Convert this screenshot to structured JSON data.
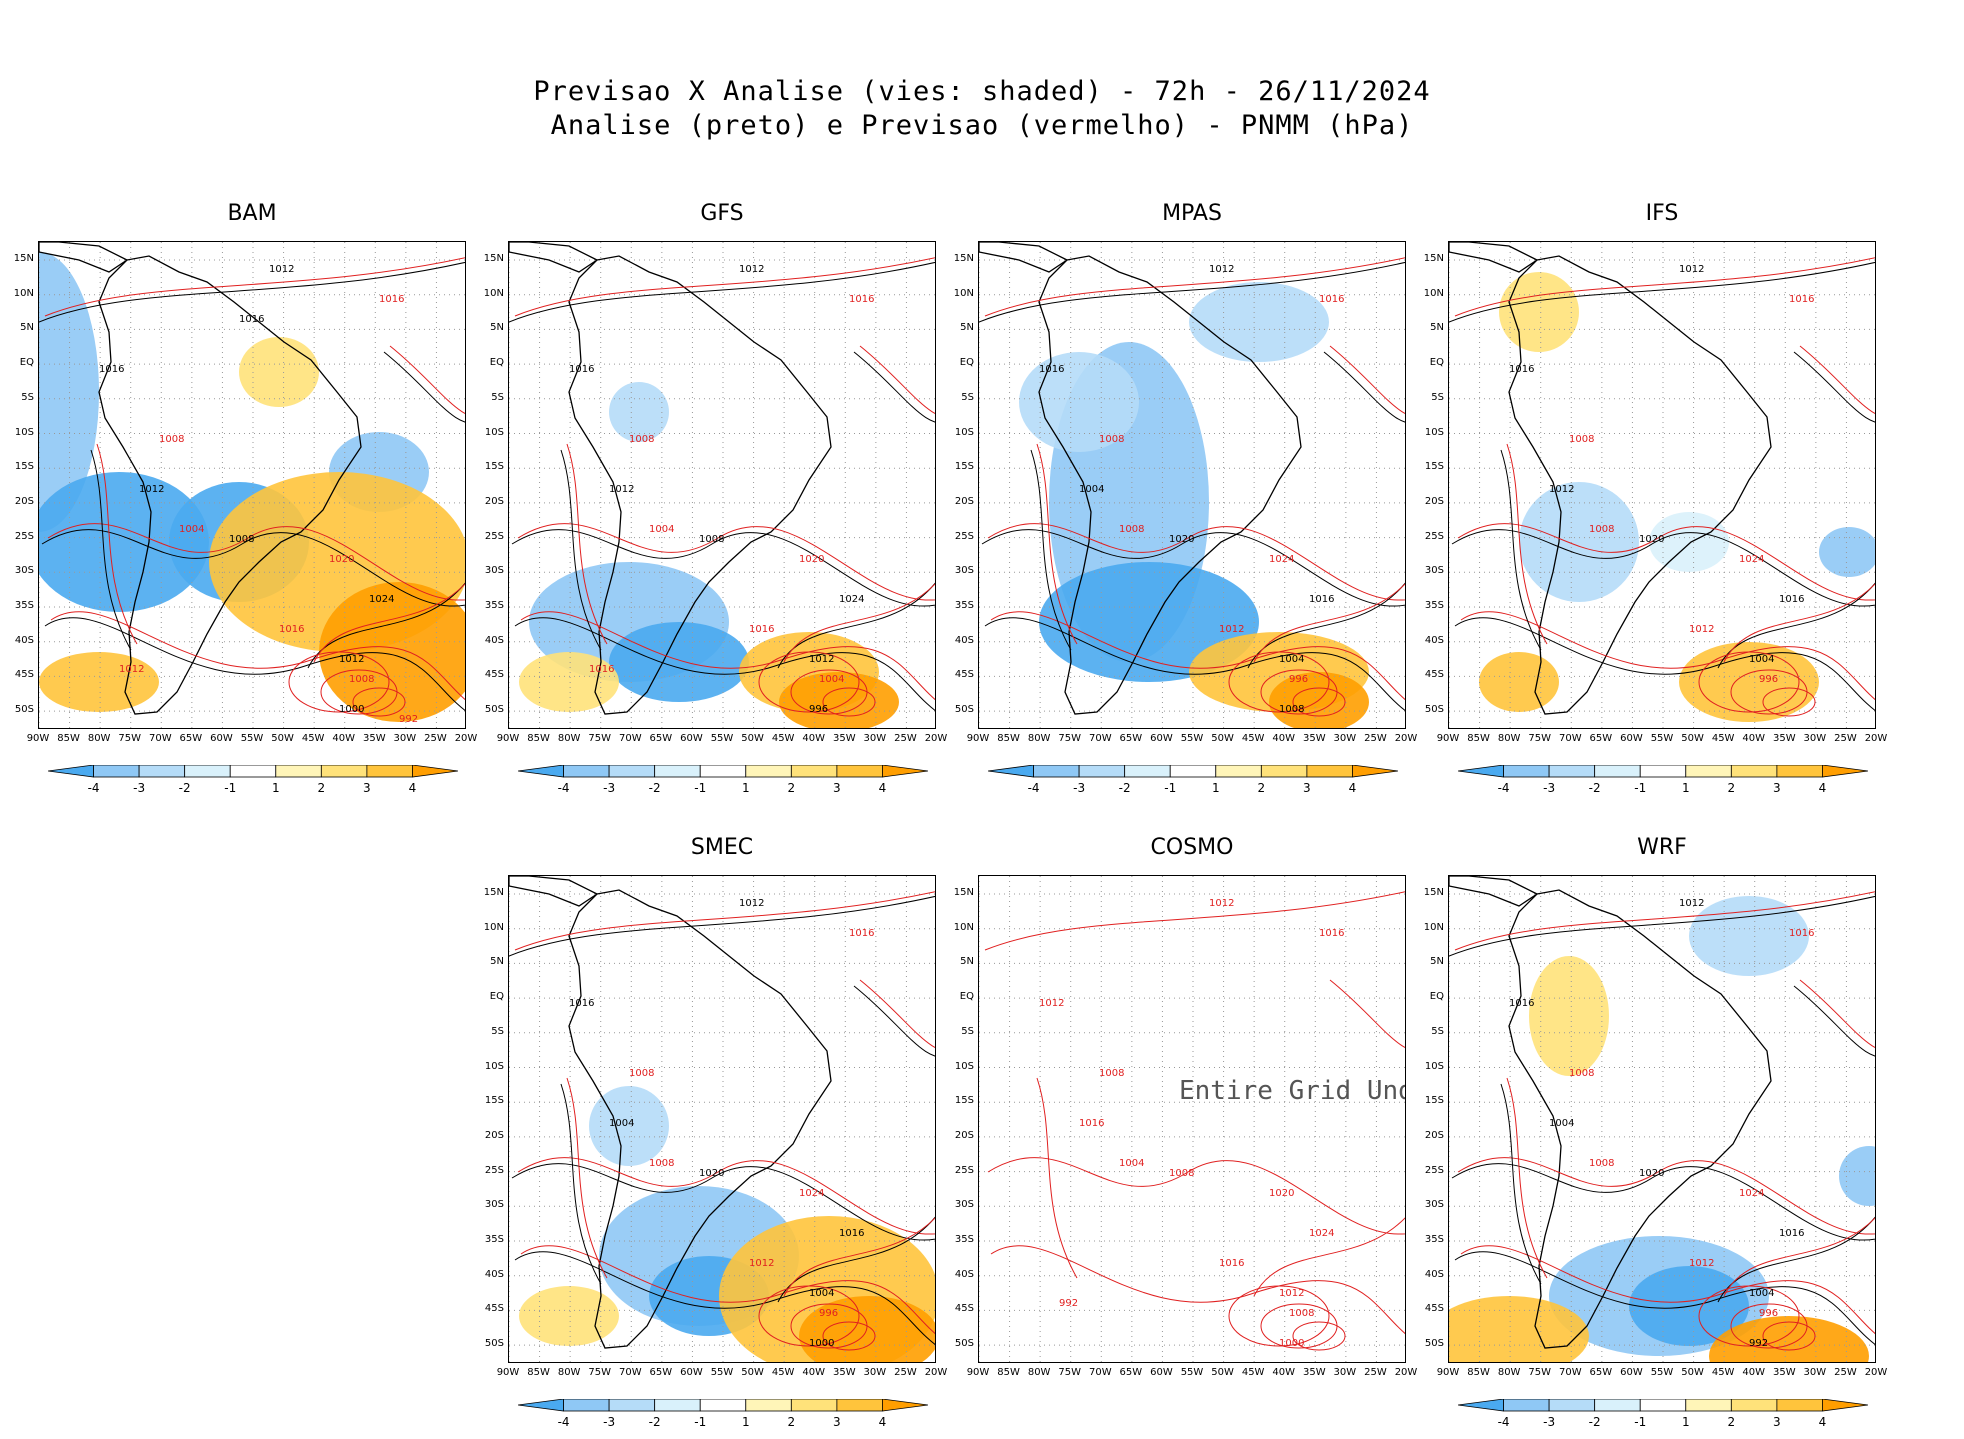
{
  "header": {
    "line1": "Previsao X Analise (vies: shaded) - 72h - 26/11/2024",
    "line2": "Analise (preto) e Previsao (vermelho) - PNMM (hPa)"
  },
  "axes": {
    "lat_labels": [
      "15N",
      "10N",
      "5N",
      "EQ",
      "5S",
      "10S",
      "15S",
      "20S",
      "25S",
      "30S",
      "35S",
      "40S",
      "45S",
      "50S"
    ],
    "lon_labels": [
      "90W",
      "85W",
      "80W",
      "75W",
      "70W",
      "65W",
      "60W",
      "55W",
      "50W",
      "45W",
      "40W",
      "35W",
      "30W",
      "25W",
      "20W"
    ]
  },
  "colorbar": {
    "ticks": [
      "-4",
      "-3",
      "-2",
      "-1",
      "1",
      "2",
      "3",
      "4"
    ],
    "colors": [
      "#4aaaf0",
      "#8fc8f5",
      "#b5dcf8",
      "#d9f1fb",
      "#ffffff",
      "#fff5b8",
      "#ffe27a",
      "#ffc43c",
      "#ff9e00"
    ]
  },
  "contour_colors": {
    "analysis": "#000000",
    "forecast": "#e02020"
  },
  "panels": [
    {
      "id": "bam",
      "title": "BAM",
      "undef": false,
      "labels": [
        "1012",
        "1016",
        "1016",
        "1008",
        "1012",
        "1004",
        "1008",
        "1020",
        "1024",
        "1016",
        "1012",
        "1008",
        "1000",
        "1012",
        "1016",
        "992"
      ]
    },
    {
      "id": "gfs",
      "title": "GFS",
      "undef": false,
      "labels": [
        "1012",
        "1016",
        "1016",
        "1008",
        "1012",
        "1004",
        "1008",
        "1020",
        "1024",
        "1016",
        "1012",
        "1004",
        "996",
        "1016"
      ]
    },
    {
      "id": "mpas",
      "title": "MPAS",
      "undef": false,
      "labels": [
        "1012",
        "1016",
        "1016",
        "1008",
        "1004",
        "1008",
        "1020",
        "1024",
        "1016",
        "1012",
        "1004",
        "996",
        "1008"
      ]
    },
    {
      "id": "ifs",
      "title": "IFS",
      "undef": false,
      "labels": [
        "1012",
        "1016",
        "1016",
        "1008",
        "1012",
        "1008",
        "1020",
        "1024",
        "1016",
        "1012",
        "1004",
        "996"
      ]
    },
    {
      "id": "smec",
      "title": "SMEC",
      "undef": false,
      "labels": [
        "1012",
        "1016",
        "1016",
        "1008",
        "1004",
        "1008",
        "1020",
        "1024",
        "1016",
        "1012",
        "1004",
        "996",
        "1000"
      ]
    },
    {
      "id": "cosmo",
      "title": "COSMO",
      "undef": true,
      "undef_text": "Entire Grid Undef",
      "labels": [
        "1012",
        "1016",
        "1012",
        "1008",
        "1016",
        "1004",
        "1008",
        "1020",
        "1024",
        "1016",
        "1012",
        "1008",
        "1000",
        "992"
      ]
    },
    {
      "id": "wrf",
      "title": "WRF",
      "undef": false,
      "labels": [
        "1012",
        "1016",
        "1016",
        "1008",
        "1004",
        "1008",
        "1020",
        "1024",
        "1016",
        "1012",
        "1004",
        "996",
        "992"
      ]
    }
  ]
}
